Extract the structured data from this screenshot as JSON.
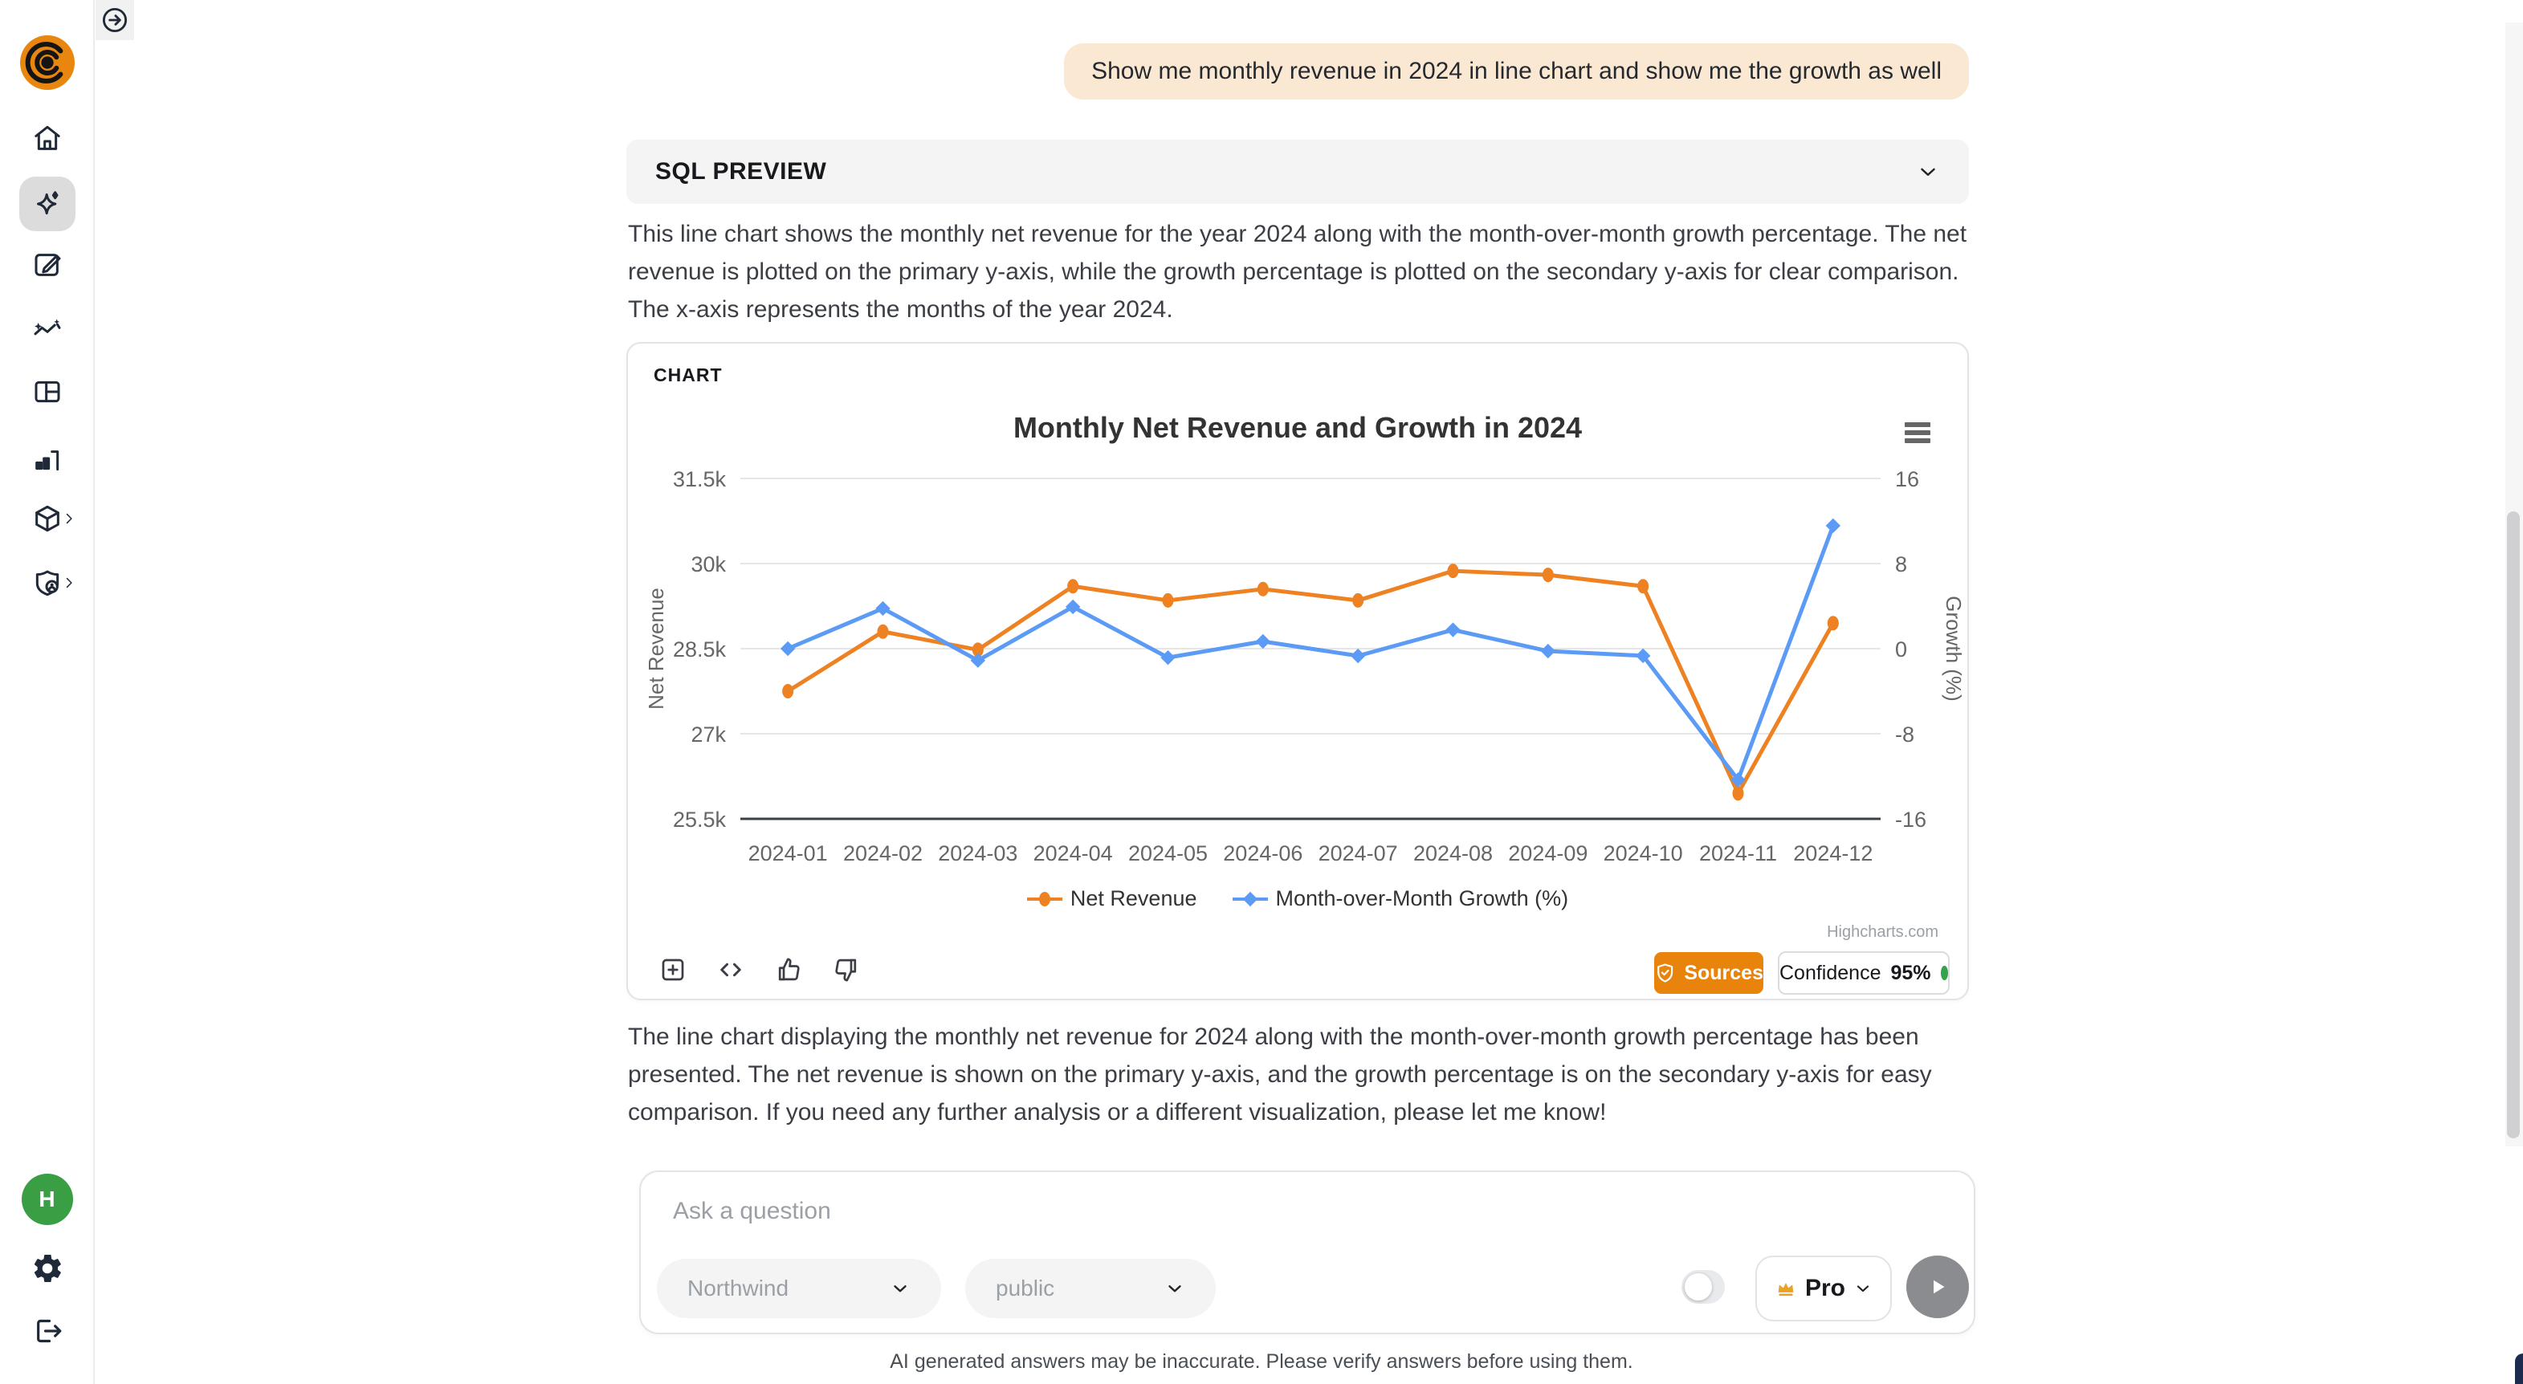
{
  "sidebar": {
    "logo_name": "brand-logo",
    "items": [
      {
        "icon": "home-icon",
        "name": "home",
        "active": false,
        "chevron": false
      },
      {
        "icon": "ai-sparkle-icon",
        "name": "assistant",
        "active": true,
        "chevron": false
      },
      {
        "icon": "compose-icon",
        "name": "new-chat",
        "active": false,
        "chevron": false
      },
      {
        "icon": "trend-sparkline-icon",
        "name": "insights",
        "active": false,
        "chevron": false
      },
      {
        "icon": "layout-panels-icon",
        "name": "dashboards",
        "active": false,
        "chevron": false
      },
      {
        "icon": "bar-chart-icon",
        "name": "reports",
        "active": false,
        "chevron": false
      },
      {
        "icon": "cube-icon",
        "name": "models",
        "active": false,
        "chevron": true
      },
      {
        "icon": "privacy-shield-icon",
        "name": "data-privacy",
        "active": false,
        "chevron": true
      }
    ],
    "avatar_initial": "H"
  },
  "chat": {
    "user_message": "Show me monthly revenue in 2024 in line chart and show me the growth as well"
  },
  "sql_preview": {
    "label": "SQL PREVIEW"
  },
  "intro_text": "This line chart shows the monthly net revenue for the year 2024 along with the month-over-month growth percentage. The net revenue is plotted on the primary y-axis, while the growth percentage is plotted on the secondary y-axis for clear comparison. The x-axis represents the months of the year 2024.",
  "chart_card": {
    "label": "CHART",
    "watermark": "Highcharts.com",
    "sources_label": "Sources",
    "confidence_label": "Confidence",
    "confidence_value": "95%"
  },
  "chart_data": {
    "type": "line",
    "title": "Monthly Net Revenue and Growth in 2024",
    "categories": [
      "2024-01",
      "2024-02",
      "2024-03",
      "2024-04",
      "2024-05",
      "2024-06",
      "2024-07",
      "2024-08",
      "2024-09",
      "2024-10",
      "2024-11",
      "2024-12"
    ],
    "series": [
      {
        "name": "Net Revenue",
        "axis": "left",
        "color": "#EE8121",
        "marker": "circle",
        "values": [
          27750,
          28800,
          28480,
          29600,
          29350,
          29550,
          29350,
          29870,
          29800,
          29600,
          25950,
          28950
        ]
      },
      {
        "name": "Month-over-Month Growth (%)",
        "axis": "right",
        "color": "#5B9BF5",
        "marker": "diamond",
        "values": [
          0,
          3.78,
          -1.11,
          3.93,
          -0.84,
          0.68,
          -0.68,
          1.77,
          -0.23,
          -0.67,
          -12.33,
          11.56
        ]
      }
    ],
    "ylabel_left": "Net Revenue",
    "ylabel_right": "Growth (%)",
    "ylim_left": [
      25500,
      31500
    ],
    "ylim_right": [
      -16,
      16
    ],
    "yticks_left": [
      "31.5k",
      "30k",
      "28.5k",
      "27k",
      "25.5k"
    ],
    "yticks_right": [
      "16",
      "8",
      "0",
      "-8",
      "-16"
    ],
    "grid": true,
    "legend_position": "bottom"
  },
  "summary_text": "The line chart displaying the monthly net revenue for 2024 along with the month-over-month growth percentage has been presented. The net revenue is shown on the primary y-axis, and the growth percentage is on the secondary y-axis for easy comparison. If you need any further analysis or a different visualization, please let me know!",
  "ask": {
    "placeholder": "Ask a question",
    "database": "Northwind",
    "schema": "public",
    "pro_label": "Pro"
  },
  "footer_note": "AI generated answers may be inaccurate. Please verify answers before using them.",
  "colors": {
    "accent_orange": "#E8830C",
    "bubble_bg": "#FAE8D2",
    "confidence_green": "#35A24D",
    "avatar_green": "#399E44"
  }
}
